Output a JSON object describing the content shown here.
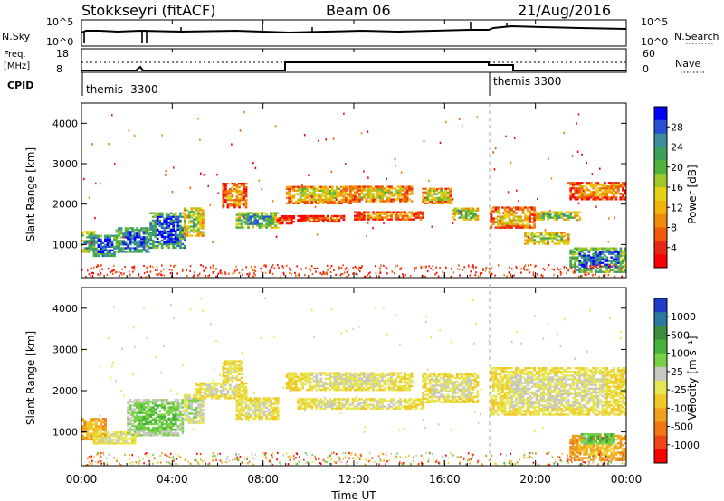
{
  "header": {
    "station": "Stokkseyri (fitACF)",
    "beam": "Beam 06",
    "date": "21/Aug/2016"
  },
  "summary": {
    "nsky_label": "N.Sky",
    "nsky_ticks": [
      "10^5",
      "10^0"
    ],
    "nsearch_label": "N.Search",
    "nsearch_ticks": [
      "10^5",
      "10^0"
    ],
    "freq_label_line1": "Freq.",
    "freq_label_line2": "[MHz]",
    "freq_ticks": [
      "18",
      "8"
    ],
    "nave_label": "Nave",
    "nave_ticks": [
      "60",
      "0"
    ],
    "cpid_label": "CPID",
    "cpid_segments": [
      {
        "label": "themis -3300",
        "start_h": 0
      },
      {
        "label": "themis 3300",
        "start_h": 18
      }
    ]
  },
  "colorbars": {
    "power": {
      "label": "Power [dB]",
      "ticks": [
        "28",
        "24",
        "20",
        "16",
        "12",
        "8",
        "4"
      ],
      "colors": [
        "#0000ff",
        "#2850d2",
        "#3c8ca0",
        "#3ca05a",
        "#50b43c",
        "#a0c828",
        "#e6d214",
        "#f0b40a",
        "#f08c0a",
        "#f05a0a",
        "#e62814",
        "#ff0000"
      ]
    },
    "velocity": {
      "label": "Velocity [m s⁻¹]",
      "ticks": [
        "1000",
        "500",
        "100",
        "25",
        "-25",
        "-100",
        "-500",
        "-1000"
      ],
      "colors": [
        "#1e3cc8",
        "#2878a0",
        "#3c8c3c",
        "#46b43c",
        "#78d246",
        "#c8c8c0",
        "#e6e650",
        "#f0c828",
        "#f0a01e",
        "#f07814",
        "#f04614",
        "#ff0000"
      ]
    }
  },
  "x_axis": {
    "label": "Time UT",
    "ticks": [
      "00:00",
      "04:00",
      "08:00",
      "12:00",
      "16:00",
      "20:00",
      "00:00"
    ]
  },
  "chart_data": {
    "type": "heatmap",
    "xlabel": "Time UT",
    "ylabel": "Slant Range [km]",
    "xlim_hours": [
      0,
      24
    ],
    "ylim_km": [
      180,
      4500
    ],
    "y_ticks": [
      1000,
      2000,
      3000,
      4000
    ],
    "power_panel": {
      "colorbar_label": "Power [dB]",
      "clim": [
        0,
        30
      ],
      "regions": [
        {
          "t0": 0.0,
          "t1": 0.6,
          "r0": 800,
          "r1": 1300,
          "value": 22
        },
        {
          "t0": 0.5,
          "t1": 1.5,
          "r0": 700,
          "r1": 1200,
          "value": 27
        },
        {
          "t0": 1.5,
          "t1": 3.0,
          "r0": 800,
          "r1": 1400,
          "value": 26
        },
        {
          "t0": 3.0,
          "t1": 4.5,
          "r0": 900,
          "r1": 1800,
          "value": 27
        },
        {
          "t0": 4.5,
          "t1": 5.3,
          "r0": 1200,
          "r1": 1900,
          "value": 18
        },
        {
          "t0": 6.2,
          "t1": 7.2,
          "r0": 1900,
          "r1": 2500,
          "value": 10
        },
        {
          "t0": 6.8,
          "t1": 8.6,
          "r0": 1400,
          "r1": 1800,
          "value": 22
        },
        {
          "t0": 8.6,
          "t1": 9.3,
          "r0": 1500,
          "r1": 1700,
          "value": 6
        },
        {
          "t0": 9.0,
          "t1": 11.8,
          "r0": 2000,
          "r1": 2450,
          "value": 14
        },
        {
          "t0": 9.5,
          "t1": 11.5,
          "r0": 1550,
          "r1": 1700,
          "value": 8
        },
        {
          "t0": 11.8,
          "t1": 14.5,
          "r0": 2050,
          "r1": 2450,
          "value": 14
        },
        {
          "t0": 12.0,
          "t1": 15.0,
          "r0": 1600,
          "r1": 1800,
          "value": 10
        },
        {
          "t0": 15.0,
          "t1": 16.3,
          "r0": 2000,
          "r1": 2400,
          "value": 15
        },
        {
          "t0": 16.3,
          "t1": 17.5,
          "r0": 1600,
          "r1": 1900,
          "value": 19
        },
        {
          "t0": 18.0,
          "t1": 20.0,
          "r0": 1400,
          "r1": 1900,
          "value": 12
        },
        {
          "t0": 19.5,
          "t1": 21.5,
          "r0": 1000,
          "r1": 1300,
          "value": 17
        },
        {
          "t0": 20.0,
          "t1": 22.0,
          "r0": 1600,
          "r1": 1800,
          "value": 19
        },
        {
          "t0": 21.5,
          "t1": 24.0,
          "r0": 2100,
          "r1": 2550,
          "value": 10
        },
        {
          "t0": 21.5,
          "t1": 24.0,
          "r0": 300,
          "r1": 900,
          "value": 25
        }
      ]
    },
    "velocity_panel": {
      "colorbar_label": "Velocity [m s⁻¹]",
      "clim": [
        -1000,
        1000
      ],
      "regions": [
        {
          "t0": 0.0,
          "t1": 1.0,
          "r0": 800,
          "r1": 1300,
          "value": -300
        },
        {
          "t0": 0.5,
          "t1": 2.5,
          "r0": 700,
          "r1": 1000,
          "value": 0
        },
        {
          "t0": 2.0,
          "t1": 4.5,
          "r0": 900,
          "r1": 1800,
          "value": 300
        },
        {
          "t0": 4.5,
          "t1": 5.3,
          "r0": 1200,
          "r1": 1900,
          "value": 150
        },
        {
          "t0": 5.0,
          "t1": 7.2,
          "r0": 1800,
          "r1": 2200,
          "value": 0
        },
        {
          "t0": 6.2,
          "t1": 7.0,
          "r0": 2200,
          "r1": 2700,
          "value": -50
        },
        {
          "t0": 6.8,
          "t1": 8.6,
          "r0": 1300,
          "r1": 1800,
          "value": 0
        },
        {
          "t0": 9.0,
          "t1": 14.5,
          "r0": 2000,
          "r1": 2450,
          "value": 0
        },
        {
          "t0": 9.5,
          "t1": 15.0,
          "r0": 1550,
          "r1": 1800,
          "value": 0
        },
        {
          "t0": 15.0,
          "t1": 17.5,
          "r0": 1700,
          "r1": 2400,
          "value": 0
        },
        {
          "t0": 18.0,
          "t1": 24.0,
          "r0": 1400,
          "r1": 2550,
          "value": 0
        },
        {
          "t0": 21.5,
          "t1": 24.0,
          "r0": 300,
          "r1": 900,
          "value": -300
        },
        {
          "t0": 22.0,
          "t1": 23.5,
          "r0": 700,
          "r1": 950,
          "value": 400
        }
      ]
    }
  }
}
